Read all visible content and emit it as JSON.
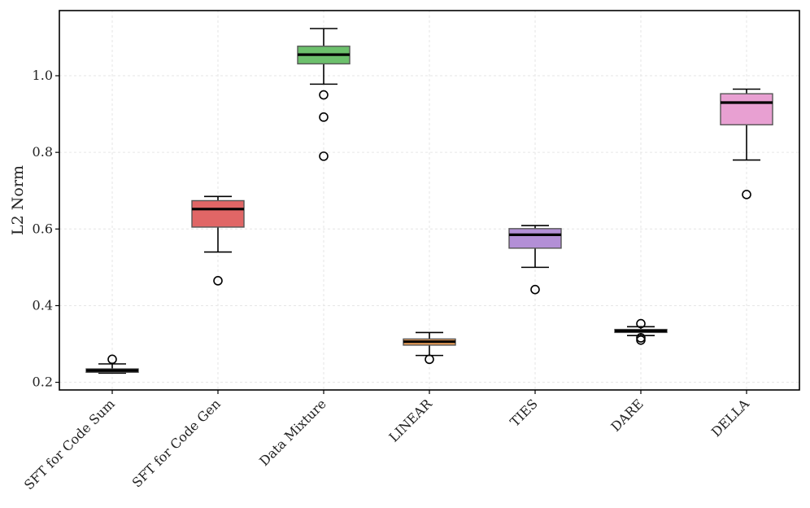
{
  "chart_data": {
    "type": "boxplot",
    "title": "",
    "xlabel": "",
    "ylabel": "L2 Norm",
    "ylim": [
      0.18,
      1.17
    ],
    "yticks": [
      0.2,
      0.4,
      0.6,
      0.8,
      1.0
    ],
    "ytick_labels": [
      "0.2",
      "0.4",
      "0.6",
      "0.8",
      "1.0"
    ],
    "grid": true,
    "categories": [
      "SFT for Code Sum",
      "SFT for Code Gen",
      "Data Mixture",
      "LINEAR",
      "TIES",
      "DARE",
      "DELLA"
    ],
    "boxes": [
      {
        "name": "SFT for Code Sum",
        "whisker_low": 0.224,
        "q1": 0.226,
        "median": 0.231,
        "q3": 0.235,
        "whisker_high": 0.248,
        "outliers": [
          0.26
        ],
        "color": "#111111"
      },
      {
        "name": "SFT for Code Gen",
        "whisker_low": 0.54,
        "q1": 0.605,
        "median": 0.652,
        "q3": 0.674,
        "whisker_high": 0.685,
        "outliers": [
          0.465
        ],
        "color": "#e06666"
      },
      {
        "name": "Data Mixture",
        "whisker_low": 0.978,
        "q1": 1.031,
        "median": 1.055,
        "q3": 1.077,
        "whisker_high": 1.123,
        "outliers": [
          0.95,
          0.892,
          0.79
        ],
        "color": "#6cc06c"
      },
      {
        "name": "LINEAR",
        "whisker_low": 0.27,
        "q1": 0.297,
        "median": 0.306,
        "q3": 0.313,
        "whisker_high": 0.33,
        "outliers": [
          0.26
        ],
        "color": "#f0a25a"
      },
      {
        "name": "TIES",
        "whisker_low": 0.5,
        "q1": 0.55,
        "median": 0.585,
        "q3": 0.601,
        "whisker_high": 0.609,
        "outliers": [
          0.442
        ],
        "color": "#b38fd6"
      },
      {
        "name": "DARE",
        "whisker_low": 0.322,
        "q1": 0.33,
        "median": 0.334,
        "q3": 0.338,
        "whisker_high": 0.345,
        "outliers": [
          0.353,
          0.316,
          0.31
        ],
        "color": "#8c8c8c"
      },
      {
        "name": "DELLA",
        "whisker_low": 0.78,
        "q1": 0.872,
        "median": 0.93,
        "q3": 0.953,
        "whisker_high": 0.965,
        "outliers": [
          0.69
        ],
        "color": "#e8a0d2"
      }
    ]
  }
}
